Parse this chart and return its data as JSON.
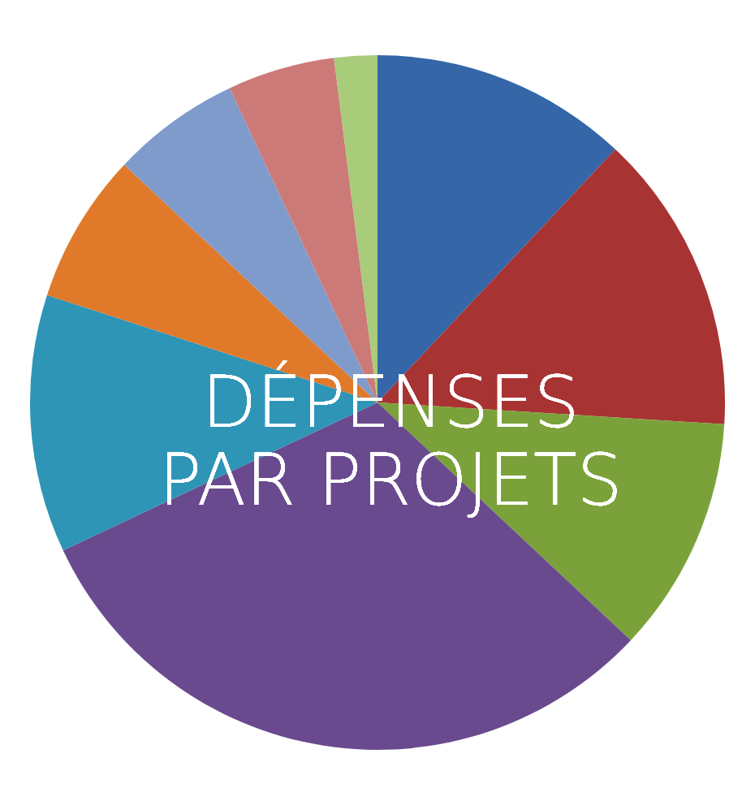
{
  "chart_data": {
    "type": "pie",
    "title": "DÉPENSES PAR PROJETS",
    "categories": [
      null,
      null,
      null,
      null,
      null,
      null,
      null,
      null,
      null
    ],
    "values": [
      12,
      14,
      11,
      31,
      12,
      7,
      6,
      5,
      2
    ],
    "colors": [
      "#3466a8",
      "#a83333",
      "#7ba23a",
      "#6a4a8e",
      "#2e95b7",
      "#e07a2a",
      "#7f9bcc",
      "#cc7a78",
      "#a8cc7a"
    ]
  }
}
